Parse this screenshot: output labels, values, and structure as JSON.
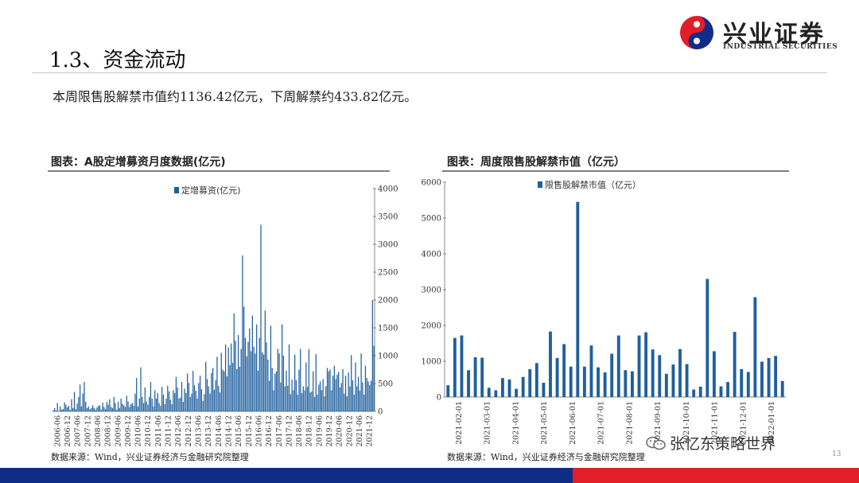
{
  "header": {
    "section_title": "1.3、资金流动",
    "summary": "本周限售股解禁市值约1136.42亿元，下周解禁约433.82亿元。"
  },
  "logo": {
    "name_cn": "兴业证券",
    "name_en": "INDUSTRIAL SECURITIES",
    "colors": {
      "red": "#e21f26",
      "blue": "#0f2d86"
    }
  },
  "left_panel": {
    "caption": "图表：A股定增募资月度数据(亿元)",
    "source": "数据来源：Wind，兴业证券经济与金融研究院整理"
  },
  "right_panel": {
    "caption": "图表：周度限售股解禁市值（亿元）",
    "source": "数据来源：Wind，兴业证券经济与金融研究院整理"
  },
  "watermark": {
    "text": "张忆东策略世界",
    "icon": "wechat-icon"
  },
  "page_number": "13",
  "chart_data": [
    {
      "type": "bar",
      "legend": "定增募资(亿元)",
      "legend_position": "top",
      "color": "#1f5f9e",
      "y_axis_side": "right",
      "ylim": [
        0,
        4000
      ],
      "yticks": [
        "0",
        "500",
        "1000",
        "1500",
        "2000",
        "2500",
        "3000",
        "3500",
        "4000"
      ],
      "tick_labels": [
        "2006-06",
        "2006-12",
        "2007-06",
        "2007-12",
        "2008-06",
        "2008-12",
        "2009-06",
        "2009-12",
        "2010-06",
        "2010-12",
        "2011-06",
        "2011-12",
        "2012-06",
        "2012-12",
        "2013-06",
        "2013-12",
        "2014-06",
        "2014-12",
        "2015-06",
        "2015-12",
        "2016-06",
        "2016-12",
        "2017-06",
        "2017-12",
        "2018-06",
        "2018-12",
        "2019-06",
        "2019-12",
        "2020-06",
        "2020-12",
        "2021-06",
        "2021-12"
      ],
      "values": [
        20,
        60,
        15,
        150,
        10,
        90,
        30,
        40,
        160,
        120,
        70,
        100,
        25,
        220,
        60,
        350,
        40,
        140,
        260,
        480,
        90,
        320,
        530,
        170,
        60,
        90,
        40,
        60,
        110,
        60,
        30,
        70,
        100,
        110,
        30,
        160,
        80,
        40,
        170,
        120,
        220,
        80,
        60,
        260,
        150,
        30,
        170,
        60,
        230,
        140,
        110,
        80,
        280,
        180,
        80,
        130,
        150,
        100,
        320,
        600,
        90,
        230,
        790,
        260,
        150,
        430,
        180,
        120,
        260,
        530,
        230,
        90,
        380,
        230,
        330,
        150,
        100,
        440,
        300,
        130,
        230,
        460,
        360,
        210,
        130,
        380,
        330,
        620,
        430,
        230,
        250,
        530,
        170,
        410,
        330,
        680,
        510,
        260,
        320,
        730,
        470,
        370,
        230,
        510,
        640,
        400,
        190,
        310,
        890,
        580,
        450,
        320,
        690,
        780,
        390,
        560,
        980,
        460,
        340,
        1050,
        750,
        720,
        1200,
        630,
        1150,
        830,
        1220,
        870,
        1760,
        1270,
        760,
        1370,
        800,
        1120,
        2800,
        1880,
        1320,
        990,
        1250,
        1490,
        1080,
        1720,
        1160,
        1040,
        1560,
        730,
        1320,
        3350,
        1060,
        1020,
        1810,
        1240,
        930,
        550,
        1540,
        780,
        380,
        680,
        720,
        1120,
        1040,
        520,
        1560,
        1000,
        450,
        730,
        460,
        1200,
        310,
        570,
        380,
        1020,
        560,
        300,
        750,
        1120,
        330,
        450,
        380,
        880,
        440,
        1120,
        340,
        360,
        720,
        260,
        1030,
        300,
        480,
        540,
        380,
        580,
        270,
        450,
        780,
        720,
        750,
        380,
        640,
        820,
        580,
        660,
        710,
        430,
        510,
        760,
        320,
        640,
        270,
        700,
        450,
        1010,
        560,
        300,
        880,
        450,
        620,
        370,
        1040,
        520,
        300,
        820,
        600,
        540,
        470,
        550,
        2000,
        1180
      ]
    },
    {
      "type": "bar",
      "legend": "限售股解禁市值（亿元）",
      "legend_position": "top",
      "color": "#1f5f9e",
      "y_axis_side": "left",
      "ylim": [
        0,
        6000
      ],
      "yticks": [
        "0",
        "1000",
        "2000",
        "3000",
        "4000",
        "5000",
        "6000"
      ],
      "tick_labels": [
        "2021-02-01",
        "2021-03-01",
        "2021-04-01",
        "2021-05-01",
        "2021-06-01",
        "2021-07-01",
        "2021-08-01",
        "2021-09-01",
        "2021-10-01",
        "2021-11-01",
        "2021-12-01",
        "2022-01-01"
      ],
      "values": [
        330,
        1650,
        1720,
        750,
        1110,
        1100,
        260,
        190,
        530,
        490,
        230,
        560,
        780,
        950,
        400,
        1830,
        1090,
        1480,
        850,
        5450,
        850,
        1440,
        830,
        690,
        1210,
        1720,
        750,
        720,
        1720,
        1810,
        1330,
        1170,
        650,
        910,
        1340,
        920,
        210,
        290,
        3300,
        1280,
        300,
        420,
        1820,
        780,
        700,
        2790,
        990,
        1090,
        1150,
        450
      ]
    }
  ]
}
